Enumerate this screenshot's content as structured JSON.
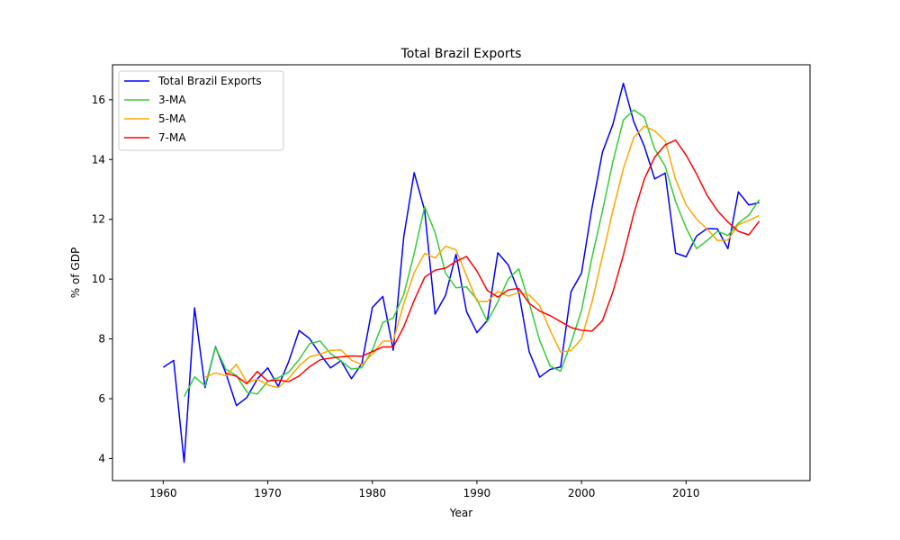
{
  "chart_data": {
    "type": "line",
    "title": "Total Brazil Exports",
    "xlabel": "Year",
    "ylabel": "% of GDP",
    "xlim": [
      1955.15,
      2021.85
    ],
    "ylim": [
      3.26,
      17.17
    ],
    "xticks": [
      1960,
      1970,
      1980,
      1990,
      2000,
      2010
    ],
    "yticks": [
      4,
      6,
      8,
      10,
      12,
      14,
      16
    ],
    "grid": false,
    "legend_position": "top-left",
    "x": [
      1960,
      1961,
      1962,
      1963,
      1964,
      1965,
      1966,
      1967,
      1968,
      1969,
      1970,
      1971,
      1972,
      1973,
      1974,
      1975,
      1976,
      1977,
      1978,
      1979,
      1980,
      1981,
      1982,
      1983,
      1984,
      1985,
      1986,
      1987,
      1988,
      1989,
      1990,
      1991,
      1992,
      1993,
      1994,
      1995,
      1996,
      1997,
      1998,
      1999,
      2000,
      2001,
      2002,
      2003,
      2004,
      2005,
      2006,
      2007,
      2008,
      2009,
      2010,
      2011,
      2012,
      2013,
      2014,
      2015,
      2016,
      2017
    ],
    "series": [
      {
        "name": "Total Brazil Exports",
        "color": "#0000ff",
        "values": [
          7.05,
          7.28,
          3.87,
          9.04,
          6.37,
          7.74,
          6.84,
          5.77,
          6.04,
          6.66,
          7.03,
          6.41,
          7.24,
          8.28,
          8.01,
          7.49,
          7.03,
          7.27,
          6.67,
          7.18,
          9.05,
          9.42,
          7.62,
          11.41,
          13.56,
          12.3,
          8.83,
          9.46,
          10.83,
          8.92,
          8.21,
          8.62,
          10.88,
          10.47,
          9.56,
          7.57,
          6.72,
          6.98,
          7.06,
          9.58,
          10.2,
          12.38,
          14.24,
          15.18,
          16.55,
          15.26,
          14.45,
          13.35,
          13.55,
          10.87,
          10.75,
          11.44,
          11.69,
          11.68,
          11.02,
          12.92,
          12.48,
          12.56
        ]
      },
      {
        "name": "3-MA",
        "color": "#33cc33",
        "values": [
          null,
          null,
          6.07,
          6.73,
          6.43,
          7.72,
          6.98,
          6.78,
          6.22,
          6.16,
          6.58,
          6.7,
          6.89,
          7.31,
          7.84,
          7.93,
          7.51,
          7.26,
          6.99,
          7.04,
          7.63,
          8.55,
          8.7,
          9.48,
          10.86,
          12.42,
          11.56,
          10.2,
          9.71,
          9.74,
          9.32,
          8.58,
          9.24,
          10.01,
          10.34,
          9.2,
          7.95,
          7.09,
          6.92,
          7.87,
          8.95,
          10.72,
          12.27,
          13.93,
          15.32,
          15.66,
          15.42,
          14.35,
          13.78,
          12.59,
          11.72,
          11.02,
          11.29,
          11.6,
          11.46,
          11.87,
          12.14,
          12.66
        ]
      },
      {
        "name": "5-MA",
        "color": "#ffa500",
        "values": [
          null,
          null,
          null,
          null,
          6.72,
          6.86,
          6.77,
          7.15,
          6.55,
          6.65,
          6.46,
          6.37,
          6.68,
          7.1,
          7.4,
          7.49,
          7.62,
          7.63,
          7.29,
          7.14,
          7.49,
          7.92,
          7.94,
          9.17,
          10.22,
          10.86,
          10.71,
          11.1,
          10.98,
          10.12,
          9.26,
          9.25,
          9.59,
          9.43,
          9.55,
          9.47,
          9.11,
          8.29,
          7.56,
          7.61,
          8.0,
          9.23,
          10.76,
          12.29,
          13.69,
          14.74,
          15.12,
          14.96,
          14.63,
          13.33,
          12.49,
          12.01,
          11.68,
          11.29,
          11.31,
          11.82,
          11.96,
          12.13
        ]
      },
      {
        "name": "7-MA",
        "color": "#ff0000",
        "values": [
          null,
          null,
          null,
          null,
          null,
          null,
          6.85,
          6.75,
          6.5,
          6.91,
          6.59,
          6.62,
          6.57,
          6.76,
          7.07,
          7.3,
          7.36,
          7.4,
          7.43,
          7.42,
          7.58,
          7.73,
          7.73,
          8.4,
          9.29,
          10.06,
          10.3,
          10.37,
          10.59,
          10.76,
          10.27,
          9.62,
          9.4,
          9.64,
          9.69,
          9.19,
          8.93,
          8.78,
          8.58,
          8.38,
          8.29,
          8.26,
          8.61,
          9.57,
          10.8,
          12.19,
          13.34,
          14.08,
          14.49,
          14.65,
          14.15,
          13.52,
          12.81,
          12.29,
          11.91,
          11.6,
          11.48,
          11.94
        ]
      }
    ]
  }
}
